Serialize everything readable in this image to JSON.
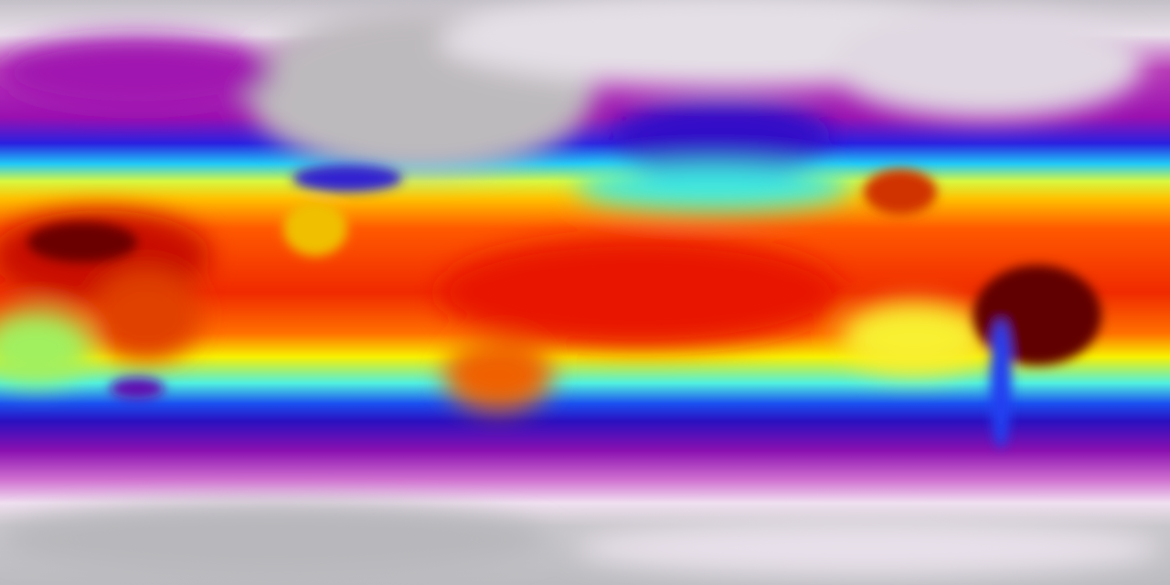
{
  "map": {
    "projection": "equirectangular",
    "variable": "temperature",
    "colormap": {
      "coldest": "#b8b8bc",
      "very_cold": "#ece4ee",
      "cold": "#a21caf",
      "cool": "#4c10c8",
      "mild_cool": "#1030f0",
      "mild": "#20e8f0",
      "warm_mild": "#f8f820",
      "warm": "#ff9a00",
      "hot": "#f02000",
      "hottest": "#5a0000"
    }
  }
}
